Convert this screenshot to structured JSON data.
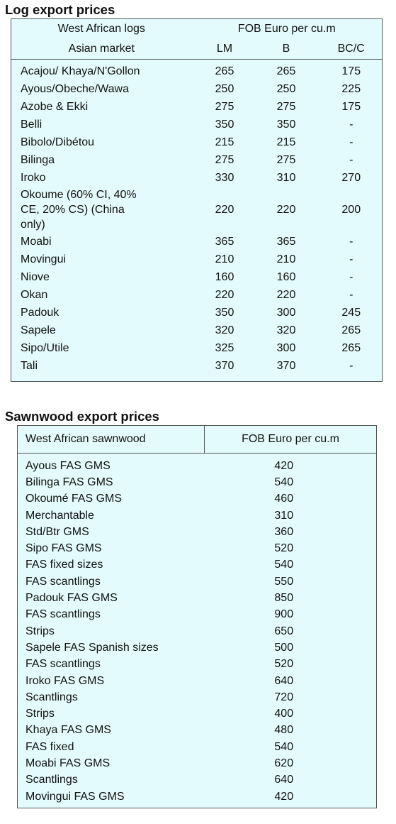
{
  "log": {
    "title": "Log export prices",
    "header": {
      "col1_line1": "West African logs",
      "col1_line2": "Asian market",
      "group": "FOB Euro per cu.m",
      "lm": "LM",
      "b": "B",
      "bcc": "BC/C"
    },
    "rows": [
      {
        "name": "Acajou/ Khaya/N'Gollon",
        "lm": "265",
        "b": "265",
        "bcc": "175"
      },
      {
        "name": "Ayous/Obeche/Wawa",
        "lm": "250",
        "b": "250",
        "bcc": "225"
      },
      {
        "name": "Azobe & Ekki",
        "lm": "275",
        "b": "275",
        "bcc": "175"
      },
      {
        "name": "Belli",
        "lm": "350",
        "b": "350",
        "bcc": "-"
      },
      {
        "name": "Bibolo/Dibétou",
        "lm": "215",
        "b": "215",
        "bcc": "-"
      },
      {
        "name": "Bilinga",
        "lm": "275",
        "b": "275",
        "bcc": "-"
      },
      {
        "name": "Iroko",
        "lm": "330",
        "b": "310",
        "bcc": "270"
      },
      {
        "name_lines": [
          "Okoume (60% CI, 40%",
          "CE, 20% CS) (China",
          "only)"
        ],
        "lm": "220",
        "b": "220",
        "bcc": "200"
      },
      {
        "name": "Moabi",
        "lm": "365",
        "b": "365",
        "bcc": "-"
      },
      {
        "name": "Movingui",
        "lm": "210",
        "b": "210",
        "bcc": "-"
      },
      {
        "name": "Niove",
        "lm": "160",
        "b": "160",
        "bcc": "-"
      },
      {
        "name": "Okan",
        "lm": "220",
        "b": "220",
        "bcc": "-"
      },
      {
        "name": "Padouk",
        "lm": "350",
        "b": "300",
        "bcc": "245"
      },
      {
        "name": "Sapele",
        "lm": "320",
        "b": "320",
        "bcc": "265"
      },
      {
        "name": "Sipo/Utile",
        "lm": "325",
        "b": "300",
        "bcc": "265"
      },
      {
        "name": "Tali",
        "lm": "370",
        "b": "370",
        "bcc": "-"
      }
    ]
  },
  "sawn": {
    "title": "Sawnwood export prices",
    "header": {
      "col1": "West African sawnwood",
      "col2": "FOB Euro per cu.m"
    },
    "rows": [
      {
        "name": "Ayous FAS GMS",
        "price": "420"
      },
      {
        "name": "Bilinga FAS GMS",
        "price": "540"
      },
      {
        "name": "Okoumé FAS GMS",
        "price": "460"
      },
      {
        "name": "Merchantable",
        "price": "310"
      },
      {
        "name": "Std/Btr GMS",
        "price": "360"
      },
      {
        "name": "Sipo FAS GMS",
        "price": "520"
      },
      {
        "name": "FAS fixed sizes",
        "price": "540"
      },
      {
        "name": "FAS scantlings",
        "price": "550"
      },
      {
        "name": "Padouk FAS GMS",
        "price": "850"
      },
      {
        "name": "FAS scantlings",
        "price": "900"
      },
      {
        "name": "Strips",
        "price": "650"
      },
      {
        "name": "Sapele FAS Spanish sizes",
        "price": "500"
      },
      {
        "name": "FAS scantlings",
        "price": "520"
      },
      {
        "name": "Iroko FAS GMS",
        "price": "640"
      },
      {
        "name": "Scantlings",
        "price": "720"
      },
      {
        "name": "Strips",
        "price": "400"
      },
      {
        "name": "Khaya FAS GMS",
        "price": "480"
      },
      {
        "name": "FAS fixed",
        "price": "540"
      },
      {
        "name": "Moabi FAS GMS",
        "price": "620"
      },
      {
        "name": "Scantlings",
        "price": "640"
      },
      {
        "name": "Movingui FAS GMS",
        "price": "420"
      }
    ]
  },
  "colors": {
    "table_background": "#e3fbfc",
    "border": "#555555",
    "text": "#111111"
  }
}
